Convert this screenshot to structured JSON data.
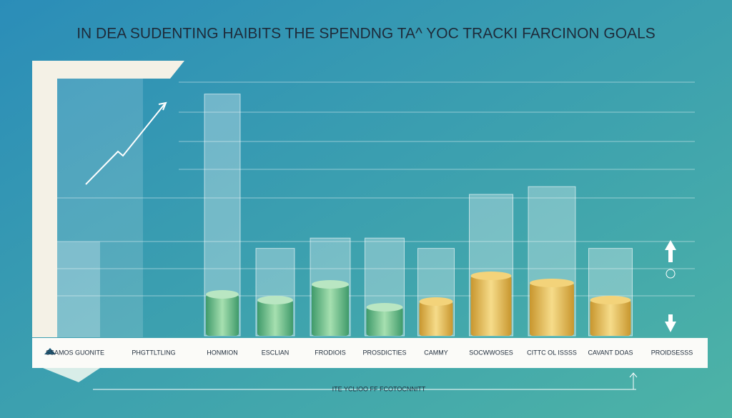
{
  "chart_data": {
    "type": "bar",
    "title": "IN DEA  SUDENTING HAIBITS THE SPENDNG TA^ YOC TRACKI FARCINON GOALS",
    "footer": "ITE YCLIOO FF FCOTOCNNITT",
    "categories": [
      "SSAMOS GUONITE",
      "PHGTTLTLING",
      "HONMION",
      "ESCLIAN",
      "FRODIOIS",
      "PROSDICTIES",
      "CAMMY",
      "SOCWWOSES",
      "CITTC OL ISSSS",
      "CAVANT DOAS",
      "PROIDSESSS"
    ],
    "values": [
      null,
      null,
      94,
      34,
      38,
      38,
      34,
      55,
      58,
      34,
      null
    ],
    "ylim": [
      0,
      100
    ],
    "color": "#ffffff"
  }
}
